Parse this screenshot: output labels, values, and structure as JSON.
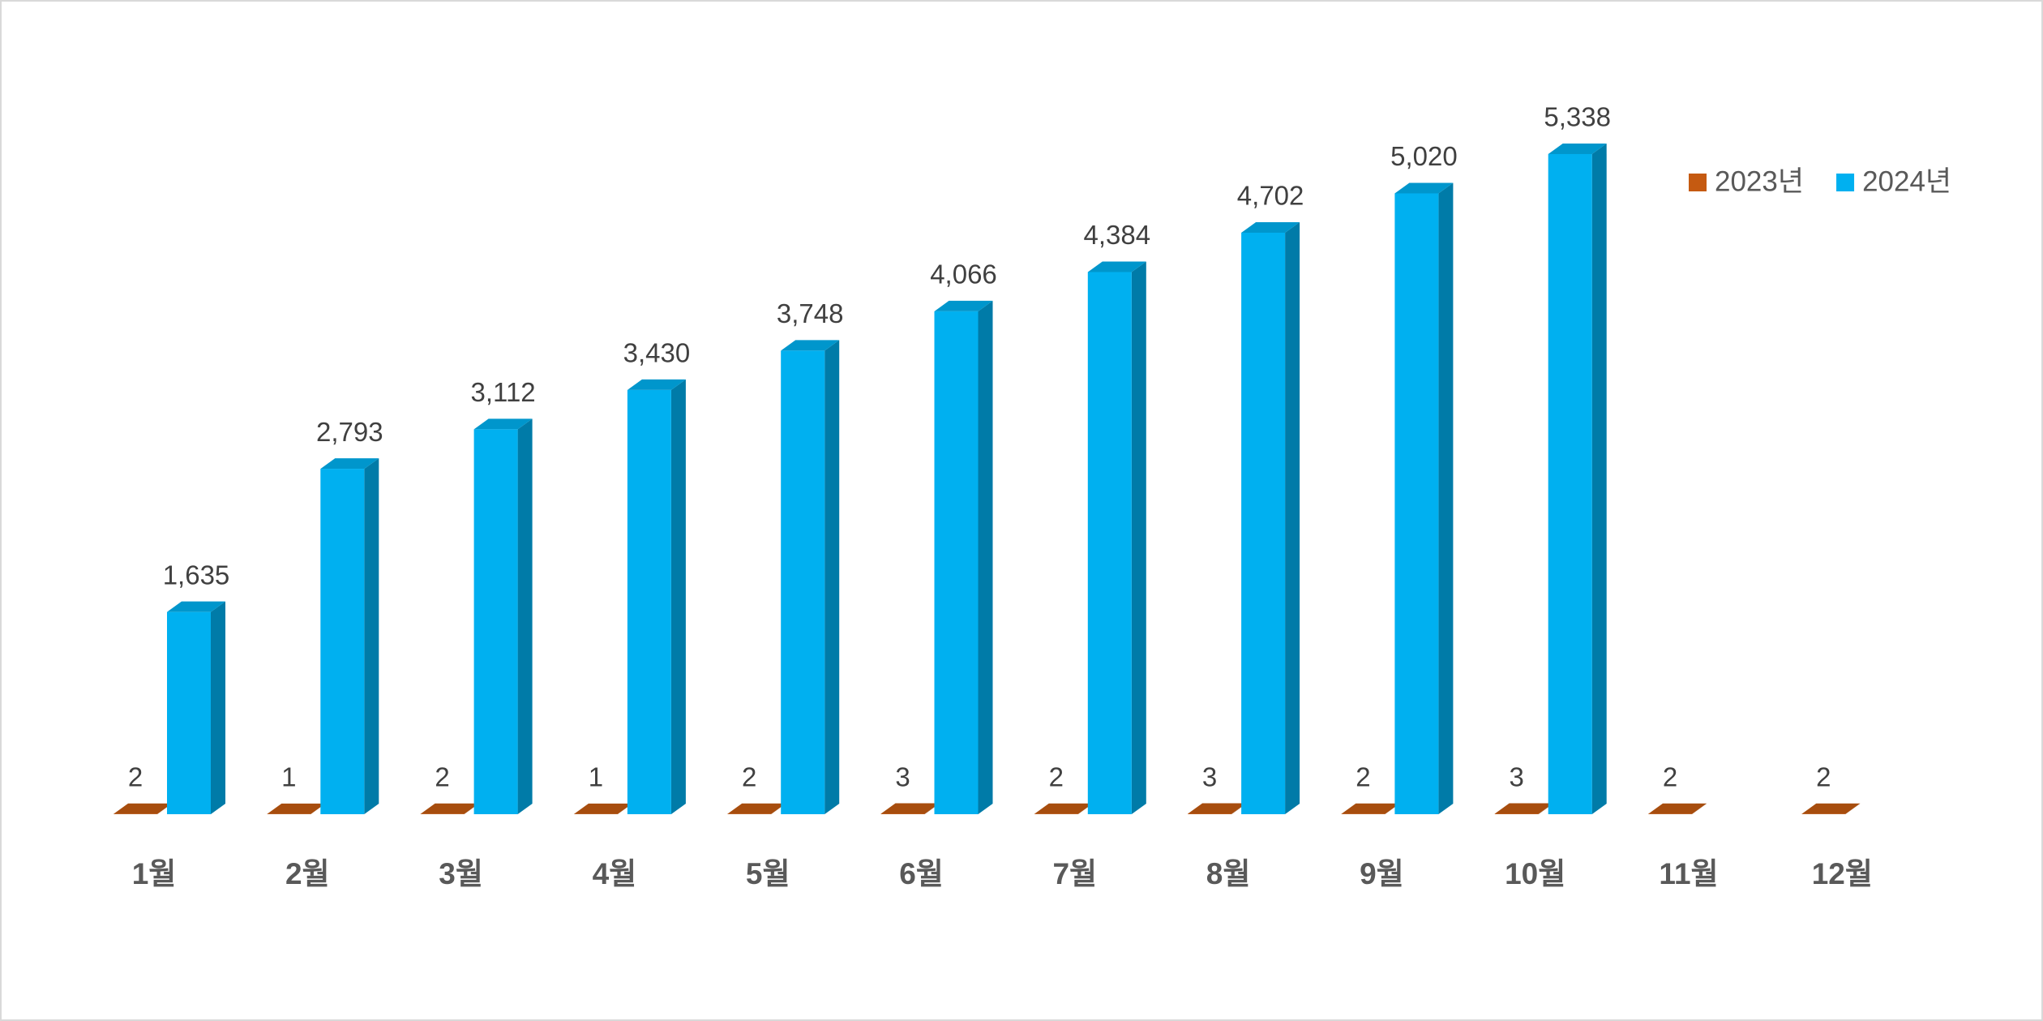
{
  "chart_data": {
    "type": "bar3d",
    "categories": [
      "1월",
      "2월",
      "3월",
      "4월",
      "5월",
      "6월",
      "7월",
      "8월",
      "9월",
      "10월",
      "11월",
      "12월"
    ],
    "series": [
      {
        "name": "2023년",
        "color": "#c55a11",
        "values": [
          2,
          1,
          2,
          1,
          2,
          3,
          2,
          3,
          2,
          3,
          2,
          2
        ]
      },
      {
        "name": "2024년",
        "color": "#00b0f0",
        "values": [
          1635,
          2793,
          3112,
          3430,
          3748,
          4066,
          4384,
          4702,
          5020,
          5338,
          null,
          null
        ],
        "value_labels": [
          "1,635",
          "2,793",
          "3,112",
          "3,430",
          "3,748",
          "4,066",
          "4,384",
          "4,702",
          "5,020",
          "5,338",
          null,
          null
        ]
      }
    ],
    "ylim": [
      0,
      6000
    ],
    "legend": "top-right"
  }
}
